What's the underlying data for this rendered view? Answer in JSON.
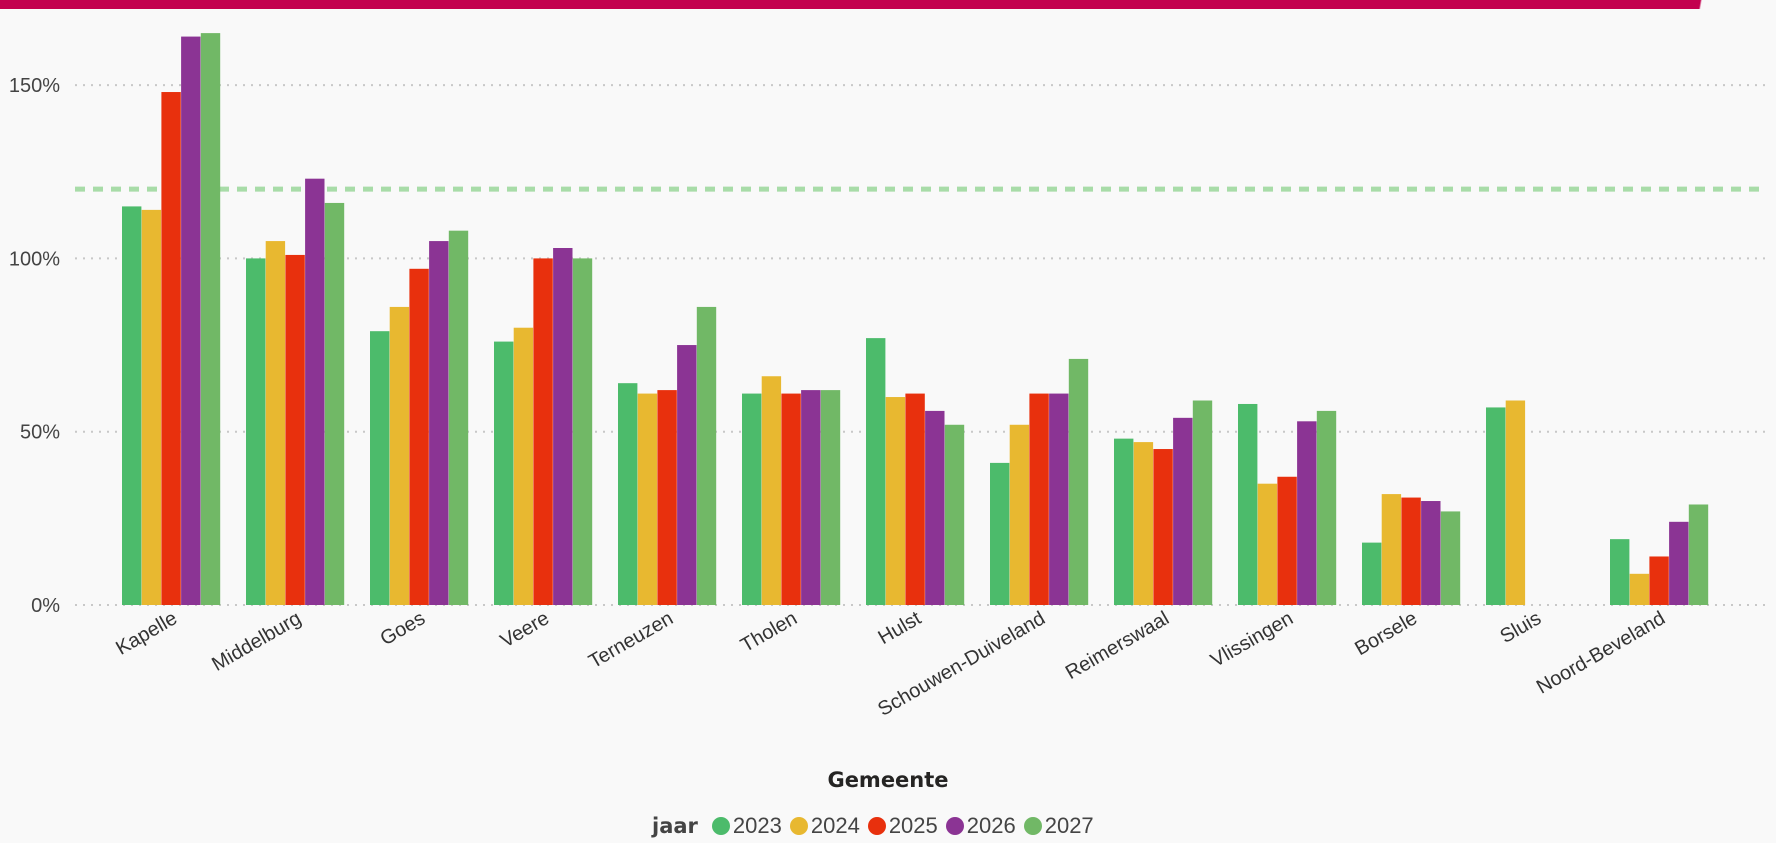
{
  "chart_data": {
    "type": "bar",
    "xlabel": "Gemeente",
    "ylabel": "",
    "ylim": [
      0,
      165
    ],
    "yticks": [
      {
        "value": 0,
        "label": "0%"
      },
      {
        "value": 50,
        "label": "50%"
      },
      {
        "value": 100,
        "label": "100%"
      },
      {
        "value": 150,
        "label": "150%"
      }
    ],
    "reference_line": {
      "value": 120,
      "color": "#a8dca8",
      "style": "dashed"
    },
    "grid": true,
    "legend": {
      "title": "jaar",
      "position": "bottom"
    },
    "categories": [
      "Kapelle",
      "Middelburg",
      "Goes",
      "Veere",
      "Terneuzen",
      "Tholen",
      "Hulst",
      "Schouwen-Duiveland",
      "Reimerswaal",
      "Vlissingen",
      "Borsele",
      "Sluis",
      "Noord-Beveland"
    ],
    "series": [
      {
        "name": "2023",
        "color": "#4cbb6b",
        "values": [
          115,
          100,
          79,
          76,
          64,
          61,
          77,
          41,
          48,
          58,
          18,
          57,
          19
        ]
      },
      {
        "name": "2024",
        "color": "#e8b830",
        "values": [
          114,
          105,
          86,
          80,
          61,
          66,
          60,
          52,
          47,
          35,
          32,
          59,
          9
        ]
      },
      {
        "name": "2025",
        "color": "#e8300d",
        "values": [
          148,
          101,
          97,
          100,
          62,
          61,
          61,
          61,
          45,
          37,
          31,
          null,
          14
        ]
      },
      {
        "name": "2026",
        "color": "#8b3494",
        "values": [
          164,
          123,
          105,
          103,
          75,
          62,
          56,
          61,
          54,
          53,
          30,
          null,
          24
        ]
      },
      {
        "name": "2027",
        "color": "#71b866",
        "values": [
          165,
          116,
          108,
          100,
          86,
          62,
          52,
          71,
          59,
          56,
          27,
          null,
          29
        ]
      }
    ]
  }
}
